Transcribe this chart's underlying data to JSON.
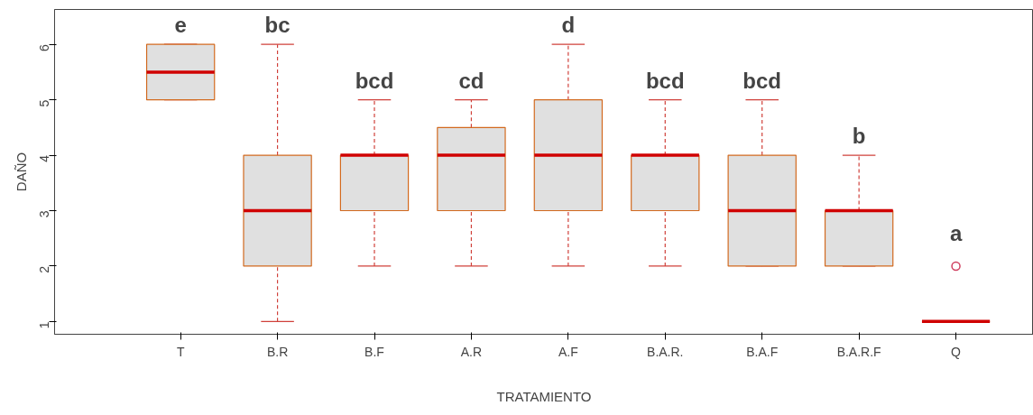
{
  "chart_data": {
    "type": "box",
    "xlabel": "TRATAMIENTO",
    "ylabel": "DAÑO",
    "categories": [
      "T",
      "B.R",
      "B.F",
      "A.R",
      "A.F",
      "B.A.R.",
      "B.A.F",
      "B.A.R.F",
      "Q"
    ],
    "series": [
      {
        "color": "#d2691e",
        "boxes": [
          {
            "low": 5,
            "q1": 5,
            "median": 5.5,
            "q3": 6,
            "high": 6
          },
          {
            "low": 1,
            "q1": 2,
            "median": 3,
            "q3": 4,
            "high": 6
          },
          {
            "low": 2,
            "q1": 3,
            "median": 4,
            "q3": 4,
            "high": 5
          },
          {
            "low": 2,
            "q1": 3,
            "median": 4,
            "q3": 4.5,
            "high": 5
          },
          {
            "low": 2,
            "q1": 3,
            "median": 4,
            "q3": 5,
            "high": 6
          },
          {
            "low": 2,
            "q1": 3,
            "median": 4,
            "q3": 4,
            "high": 5
          },
          {
            "low": 2,
            "q1": 2,
            "median": 3,
            "q3": 4,
            "high": 5
          },
          {
            "low": 2,
            "q1": 2,
            "median": 3,
            "q3": 3,
            "high": 4
          },
          {
            "low": 1,
            "q1": 1,
            "median": 1,
            "q3": 1,
            "high": 1,
            "outliers": [
              2
            ]
          }
        ]
      }
    ],
    "ylim": [
      0.77,
      6.63
    ],
    "yticks": [
      1,
      2,
      3,
      4,
      5,
      6
    ],
    "grid": false,
    "annotations": [
      "e",
      "bc",
      "bcd",
      "cd",
      "d",
      "bcd",
      "bcd",
      "b",
      "a"
    ]
  }
}
